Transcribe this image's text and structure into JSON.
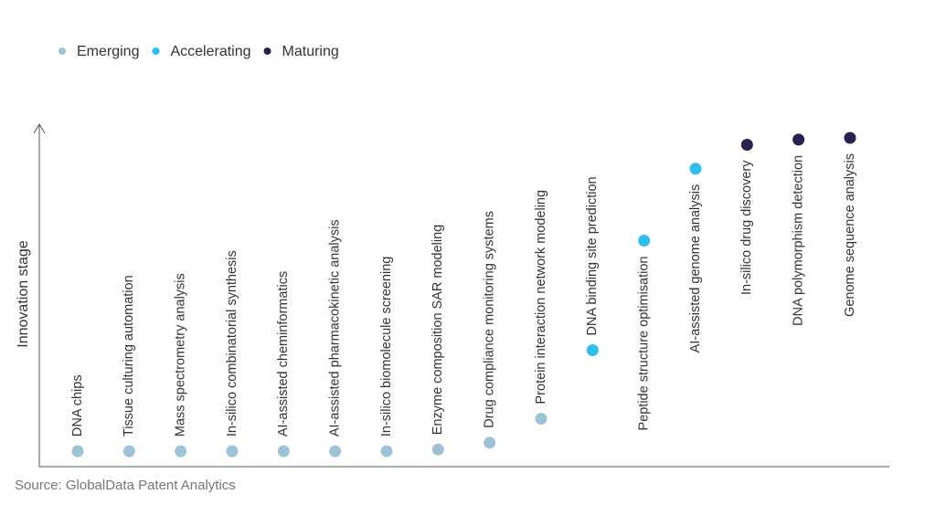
{
  "chart_data": {
    "type": "scatter",
    "y_label": "Innovation stage",
    "source": "Source: GlobalData Patent Analytics",
    "categories": [
      "DNA chips",
      "Tissue culturing automation",
      "Mass spectrometry analysis",
      "In-silico combinatorial synthesis",
      "AI-assisted cheminformatics",
      "AI-assisted pharmacokinetic analysis",
      "In-silico biomolecule screening",
      "Enzyme composition SAR modeling",
      "Drug compliance monitoring systems",
      "Protein interaction network modeling",
      "DNA binding site prediction",
      "Peptide structure optimisation",
      "AI-assisted genome analysis",
      "In-silico drug discovery",
      "DNA polymorphism detection",
      "Genome sequence analysis"
    ],
    "series": [
      {
        "name": "Emerging",
        "color": "#9ec3d6",
        "values": [
          4.5,
          4.5,
          4.5,
          4.5,
          4.5,
          4.5,
          4.5,
          5,
          7,
          14,
          null,
          null,
          null,
          null,
          null,
          null
        ]
      },
      {
        "name": "Accelerating",
        "color": "#2ebff0",
        "values": [
          null,
          null,
          null,
          null,
          null,
          null,
          null,
          null,
          null,
          null,
          34,
          66,
          87,
          null,
          null,
          null
        ]
      },
      {
        "name": "Maturing",
        "color": "#2a1f4d",
        "values": [
          null,
          null,
          null,
          null,
          null,
          null,
          null,
          null,
          null,
          null,
          null,
          null,
          null,
          94,
          95.5,
          96
        ]
      }
    ],
    "ylim": [
      0,
      100
    ]
  }
}
